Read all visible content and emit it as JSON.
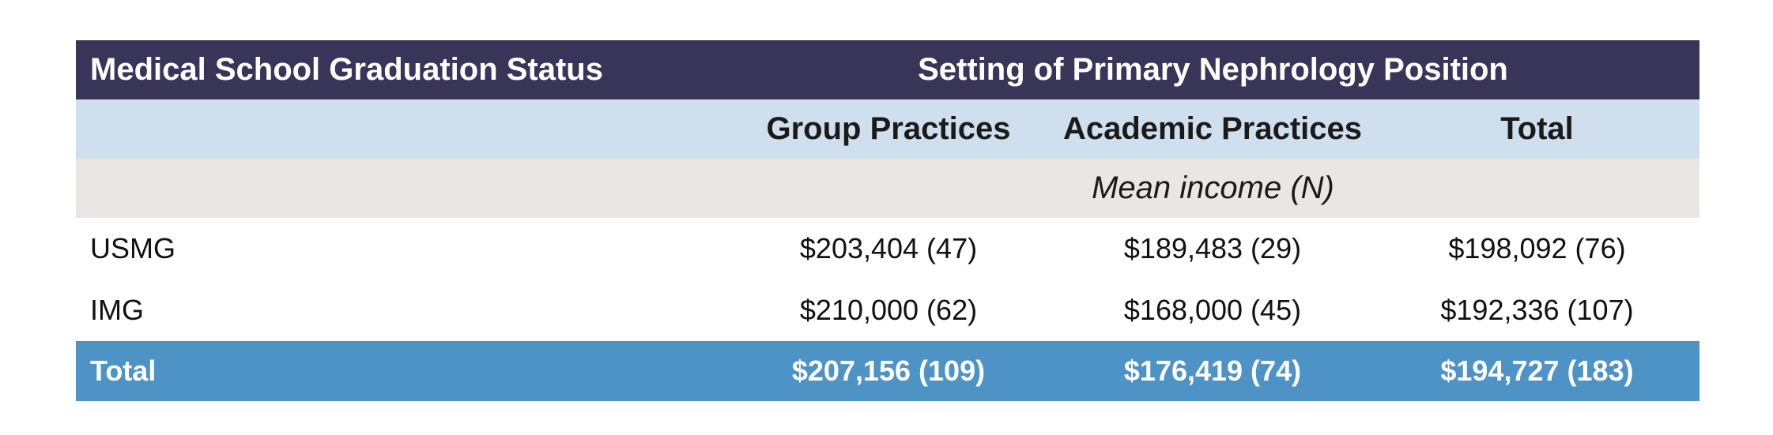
{
  "table": {
    "title_row": {
      "row_header": "Medical School Graduation Status",
      "group_header": "Setting of Primary Nephrology Position"
    },
    "columns": [
      "Group Practices",
      "Academic Practices",
      "Total"
    ],
    "subheader": "Mean income (N)",
    "rows": [
      {
        "label": "USMG",
        "values": [
          "$203,404 (47)",
          "$189,483 (29)",
          "$198,092 (76)"
        ]
      },
      {
        "label": "IMG",
        "values": [
          "$210,000 (62)",
          "$168,000 (45)",
          "$192,336 (107)"
        ]
      }
    ],
    "total": {
      "label": "Total",
      "values": [
        "$207,156 (109)",
        "$176,419 (74)",
        "$194,727 (183)"
      ]
    }
  },
  "colors": {
    "title_bg": "#393559",
    "header_bg": "#cfdfee",
    "subheader_bg": "#e9e6e4",
    "total_bg": "#4e93c6"
  }
}
